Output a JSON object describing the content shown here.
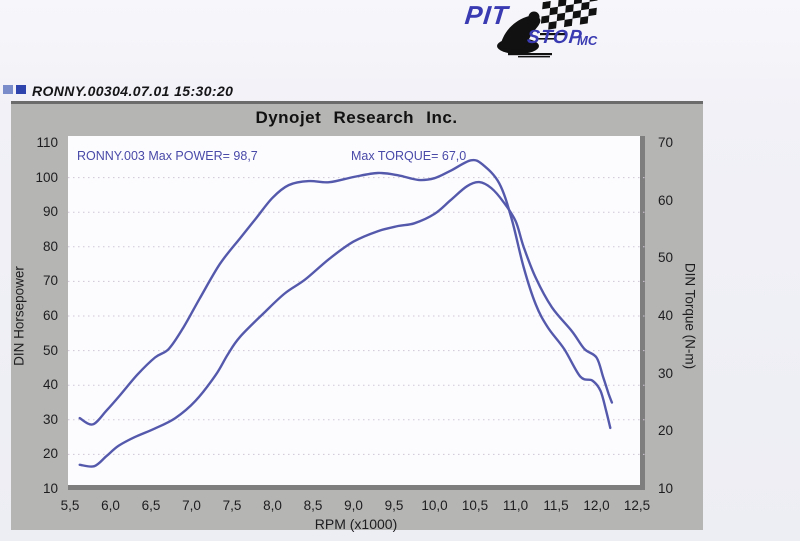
{
  "logo": {
    "pit": "PIT",
    "stop": "STOP",
    "mc": "MC"
  },
  "header": {
    "file_id": "RONNY.00304.07.01 15:30:20"
  },
  "panel": {
    "title": "Dynojet Research Inc."
  },
  "chart_data": {
    "type": "line",
    "title": "Dynojet Research Inc.",
    "xlabel": "RPM (x1000)",
    "ylabel_left": "DIN Horsepower",
    "ylabel_right": "DIN Torque (N-m)",
    "xlim": [
      5.5,
      12.5
    ],
    "ylim_left": [
      10,
      110
    ],
    "ylim_right": [
      10,
      70
    ],
    "grid": "horizontal-dotted",
    "legend_position": "none",
    "max_power": "98,7",
    "max_torque": "67,0",
    "annotations": [
      {
        "text": "RONNY.003  Max POWER= 98,7"
      },
      {
        "text": "Max TORQUE= 67,0"
      }
    ],
    "x_tick_labels": [
      "5,5",
      "6,0",
      "6,5",
      "7,0",
      "7,5",
      "8,0",
      "8,5",
      "9,0",
      "9,5",
      "10,0",
      "10,5",
      "11,0",
      "11,5",
      "12,0",
      "12,5"
    ],
    "y_left_tick_labels": [
      "110",
      "100",
      "90",
      "80",
      "70",
      "60",
      "50",
      "40",
      "30",
      "20",
      "10"
    ],
    "y_right_tick_labels": [
      "70",
      "60",
      "50",
      "40",
      "30",
      "20",
      "10"
    ],
    "line_color": "#5559ac",
    "grid_color": "#cfc5d5",
    "series": [
      {
        "name": "DIN Horsepower",
        "axis": "left",
        "x": [
          5.62,
          5.8,
          5.95,
          6.1,
          6.3,
          6.55,
          6.8,
          7.05,
          7.3,
          7.45,
          7.6,
          7.9,
          8.15,
          8.4,
          8.7,
          9.0,
          9.3,
          9.55,
          9.75,
          10.0,
          10.2,
          10.4,
          10.55,
          10.7,
          10.85,
          11.0,
          11.1,
          11.25,
          11.45,
          11.7,
          11.85,
          12.0,
          12.08,
          12.15,
          12.19
        ],
        "values": [
          17.0,
          16.6,
          19.5,
          22.5,
          25.0,
          27.5,
          30.5,
          35.5,
          43.0,
          49.0,
          54.0,
          61.0,
          66.5,
          70.5,
          76.5,
          81.5,
          84.5,
          86.0,
          86.8,
          89.5,
          93.5,
          97.5,
          98.7,
          97.0,
          93.0,
          87.5,
          80.0,
          71.0,
          62.5,
          55.5,
          50.5,
          48.0,
          42.5,
          37.5,
          35.0
        ]
      },
      {
        "name": "DIN Torque (N-m)",
        "axis": "right",
        "x": [
          5.62,
          5.78,
          5.95,
          6.12,
          6.33,
          6.55,
          6.72,
          6.9,
          7.1,
          7.35,
          7.6,
          7.8,
          8.0,
          8.2,
          8.45,
          8.7,
          9.0,
          9.3,
          9.55,
          9.8,
          10.0,
          10.2,
          10.45,
          10.6,
          10.8,
          10.95,
          11.1,
          11.25,
          11.4,
          11.6,
          11.8,
          11.95,
          12.05,
          12.12,
          12.17
        ],
        "values": [
          22.3,
          21.2,
          23.6,
          26.3,
          29.8,
          32.8,
          34.3,
          38.0,
          43.0,
          49.0,
          53.5,
          57.0,
          60.5,
          62.7,
          63.4,
          63.2,
          64.1,
          64.8,
          64.4,
          63.6,
          63.9,
          65.2,
          67.0,
          66.2,
          63.0,
          57.0,
          48.5,
          42.0,
          38.0,
          34.3,
          29.5,
          28.8,
          27.0,
          23.5,
          20.6
        ]
      }
    ]
  }
}
